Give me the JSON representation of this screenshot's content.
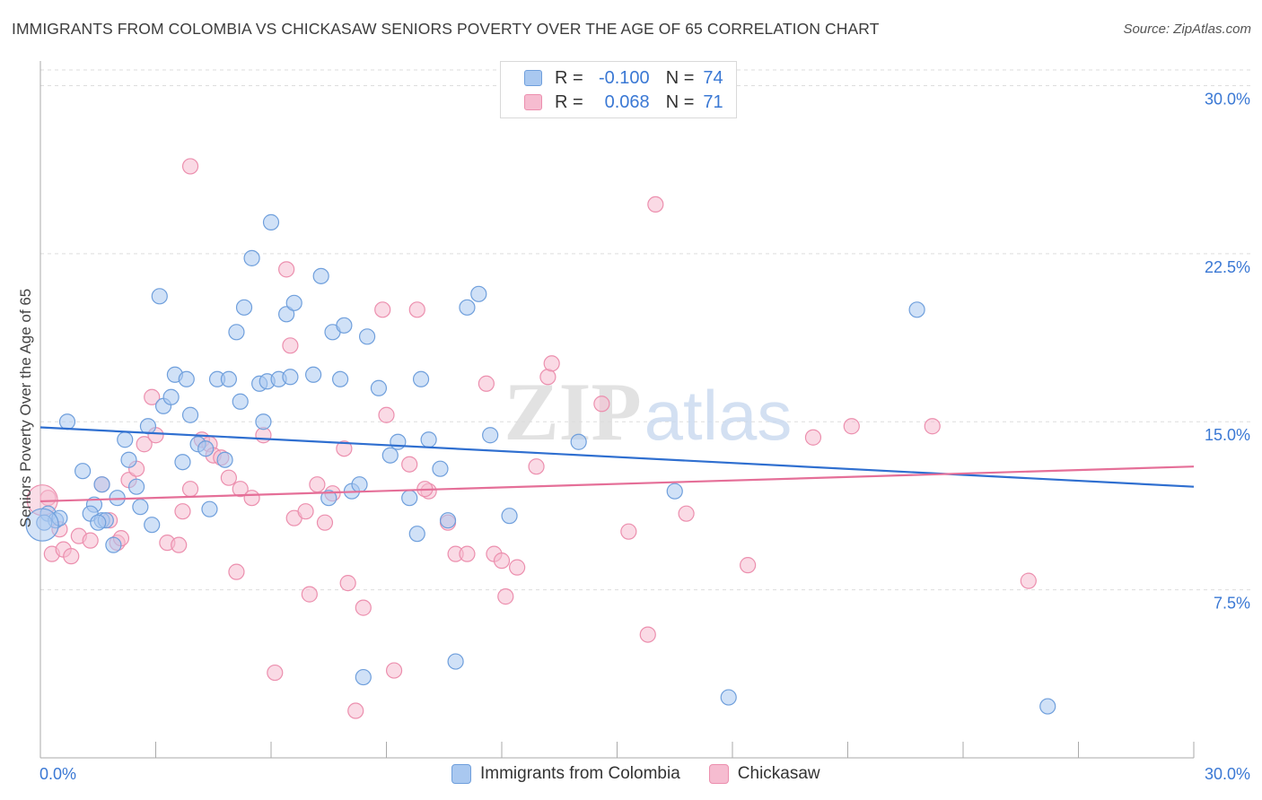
{
  "header": {
    "title": "IMMIGRANTS FROM COLOMBIA VS CHICKASAW SENIORS POVERTY OVER THE AGE OF 65 CORRELATION CHART",
    "source": "Source: ZipAtlas.com"
  },
  "watermark": {
    "zip": "ZIP",
    "atlas": "atlas"
  },
  "legend": {
    "rows": [
      {
        "r_label": "R =",
        "r_value": "-0.100",
        "n_label": "N =",
        "n_value": "74"
      },
      {
        "r_label": "R =",
        "r_value": "0.068",
        "n_label": "N =",
        "n_value": "71"
      }
    ]
  },
  "bottom_legend": [
    "Immigrants from Colombia",
    "Chickasaw"
  ],
  "colors": {
    "blue_fill": "#a9c8f0",
    "blue_stroke": "#6f9fdc",
    "blue_line": "#2f6fd0",
    "pink_fill": "#f6bcd0",
    "pink_stroke": "#ec8fae",
    "pink_line": "#e56f98",
    "grid": "#dddddd",
    "tick_label": "#3a78d4"
  },
  "chart_data": {
    "type": "scatter",
    "title": "IMMIGRANTS FROM COLOMBIA VS CHICKASAW SENIORS POVERTY OVER THE AGE OF 65 CORRELATION CHART",
    "xlabel": "",
    "ylabel": "Seniors Poverty Over the Age of 65",
    "xlim": [
      0,
      30
    ],
    "ylim": [
      0,
      30.7
    ],
    "x_tick_labels": [
      "0.0%",
      "30.0%"
    ],
    "y_ticks": [
      7.5,
      15.0,
      22.5,
      30.0
    ],
    "y_tick_labels": [
      "7.5%",
      "15.0%",
      "22.5%",
      "30.0%"
    ],
    "grid": true,
    "legend_position": "top-center",
    "series": [
      {
        "name": "Immigrants from Colombia",
        "r": -0.1,
        "n": 74,
        "trend": [
          [
            0,
            14.75
          ],
          [
            30,
            12.1
          ]
        ],
        "points": [
          [
            0.2,
            10.9
          ],
          [
            0.4,
            10.6
          ],
          [
            0.5,
            10.7
          ],
          [
            0.7,
            15.0
          ],
          [
            1.1,
            12.8
          ],
          [
            1.4,
            11.3
          ],
          [
            1.3,
            10.9
          ],
          [
            1.6,
            10.6
          ],
          [
            1.6,
            12.2
          ],
          [
            1.7,
            10.6
          ],
          [
            1.9,
            9.5
          ],
          [
            2.0,
            11.6
          ],
          [
            2.2,
            14.2
          ],
          [
            2.3,
            13.3
          ],
          [
            2.5,
            12.1
          ],
          [
            2.6,
            11.2
          ],
          [
            2.8,
            14.8
          ],
          [
            2.9,
            10.4
          ],
          [
            3.1,
            20.6
          ],
          [
            3.2,
            15.7
          ],
          [
            3.4,
            16.1
          ],
          [
            3.5,
            17.1
          ],
          [
            3.7,
            13.2
          ],
          [
            3.8,
            16.9
          ],
          [
            3.9,
            15.3
          ],
          [
            4.1,
            14.0
          ],
          [
            4.3,
            13.8
          ],
          [
            4.4,
            11.1
          ],
          [
            4.6,
            16.9
          ],
          [
            4.8,
            13.3
          ],
          [
            4.9,
            16.9
          ],
          [
            5.1,
            19.0
          ],
          [
            5.2,
            15.9
          ],
          [
            5.3,
            20.1
          ],
          [
            5.5,
            22.3
          ],
          [
            5.7,
            16.7
          ],
          [
            5.8,
            15.0
          ],
          [
            5.9,
            16.8
          ],
          [
            6.0,
            23.9
          ],
          [
            6.2,
            16.9
          ],
          [
            6.4,
            19.8
          ],
          [
            6.5,
            17.0
          ],
          [
            6.6,
            20.3
          ],
          [
            7.1,
            17.1
          ],
          [
            7.3,
            21.5
          ],
          [
            7.5,
            11.6
          ],
          [
            7.6,
            19.0
          ],
          [
            7.8,
            16.9
          ],
          [
            7.9,
            19.3
          ],
          [
            8.1,
            11.9
          ],
          [
            8.3,
            12.2
          ],
          [
            8.4,
            3.6
          ],
          [
            8.5,
            18.8
          ],
          [
            8.8,
            16.5
          ],
          [
            9.1,
            13.5
          ],
          [
            9.3,
            14.1
          ],
          [
            9.6,
            11.6
          ],
          [
            9.8,
            10.0
          ],
          [
            9.9,
            16.9
          ],
          [
            10.1,
            14.2
          ],
          [
            10.4,
            12.9
          ],
          [
            10.6,
            10.6
          ],
          [
            10.8,
            4.3
          ],
          [
            11.1,
            20.1
          ],
          [
            11.4,
            20.7
          ],
          [
            11.7,
            14.4
          ],
          [
            12.2,
            10.8
          ],
          [
            14.0,
            14.1
          ],
          [
            16.5,
            11.9
          ],
          [
            17.9,
            2.7
          ],
          [
            22.8,
            20.0
          ],
          [
            26.2,
            2.3
          ],
          [
            0.1,
            10.5
          ],
          [
            1.5,
            10.5
          ]
        ]
      },
      {
        "name": "Chickasaw",
        "r": 0.068,
        "n": 71,
        "trend": [
          [
            0,
            11.45
          ],
          [
            30,
            13.0
          ]
        ],
        "points": [
          [
            0.2,
            11.6
          ],
          [
            0.3,
            9.1
          ],
          [
            0.5,
            10.2
          ],
          [
            0.6,
            9.3
          ],
          [
            0.8,
            9.0
          ],
          [
            1.0,
            9.9
          ],
          [
            1.3,
            9.7
          ],
          [
            1.6,
            12.2
          ],
          [
            1.8,
            10.6
          ],
          [
            2.0,
            9.6
          ],
          [
            2.1,
            9.8
          ],
          [
            2.3,
            12.4
          ],
          [
            2.5,
            12.9
          ],
          [
            2.7,
            14.0
          ],
          [
            2.9,
            16.1
          ],
          [
            3.0,
            14.4
          ],
          [
            3.3,
            9.6
          ],
          [
            3.6,
            9.5
          ],
          [
            3.7,
            11.0
          ],
          [
            3.9,
            12.0
          ],
          [
            3.9,
            26.4
          ],
          [
            4.2,
            14.2
          ],
          [
            4.4,
            14.0
          ],
          [
            4.5,
            13.5
          ],
          [
            4.7,
            13.4
          ],
          [
            4.9,
            12.5
          ],
          [
            5.1,
            8.3
          ],
          [
            5.2,
            12.0
          ],
          [
            5.5,
            11.6
          ],
          [
            5.8,
            14.4
          ],
          [
            6.1,
            3.8
          ],
          [
            6.4,
            21.8
          ],
          [
            6.5,
            18.4
          ],
          [
            6.6,
            10.7
          ],
          [
            6.9,
            11.0
          ],
          [
            7.0,
            7.3
          ],
          [
            7.2,
            12.2
          ],
          [
            7.4,
            10.5
          ],
          [
            7.6,
            11.8
          ],
          [
            7.9,
            13.8
          ],
          [
            8.0,
            7.8
          ],
          [
            8.2,
            2.1
          ],
          [
            8.4,
            6.7
          ],
          [
            8.9,
            20.0
          ],
          [
            9.0,
            15.3
          ],
          [
            9.2,
            3.9
          ],
          [
            9.6,
            13.1
          ],
          [
            9.8,
            20.0
          ],
          [
            10.1,
            11.9
          ],
          [
            10.6,
            10.5
          ],
          [
            10.8,
            9.1
          ],
          [
            11.1,
            9.1
          ],
          [
            11.6,
            16.7
          ],
          [
            11.8,
            9.1
          ],
          [
            12.0,
            8.8
          ],
          [
            12.1,
            7.2
          ],
          [
            12.4,
            8.5
          ],
          [
            12.9,
            13.0
          ],
          [
            13.2,
            17.0
          ],
          [
            13.3,
            17.6
          ],
          [
            14.6,
            15.8
          ],
          [
            15.3,
            10.1
          ],
          [
            15.8,
            5.5
          ],
          [
            16.0,
            24.7
          ],
          [
            16.8,
            10.9
          ],
          [
            18.4,
            8.6
          ],
          [
            20.1,
            14.3
          ],
          [
            21.1,
            14.8
          ],
          [
            23.2,
            14.8
          ],
          [
            25.7,
            7.9
          ],
          [
            10.0,
            12.0
          ]
        ]
      }
    ]
  }
}
